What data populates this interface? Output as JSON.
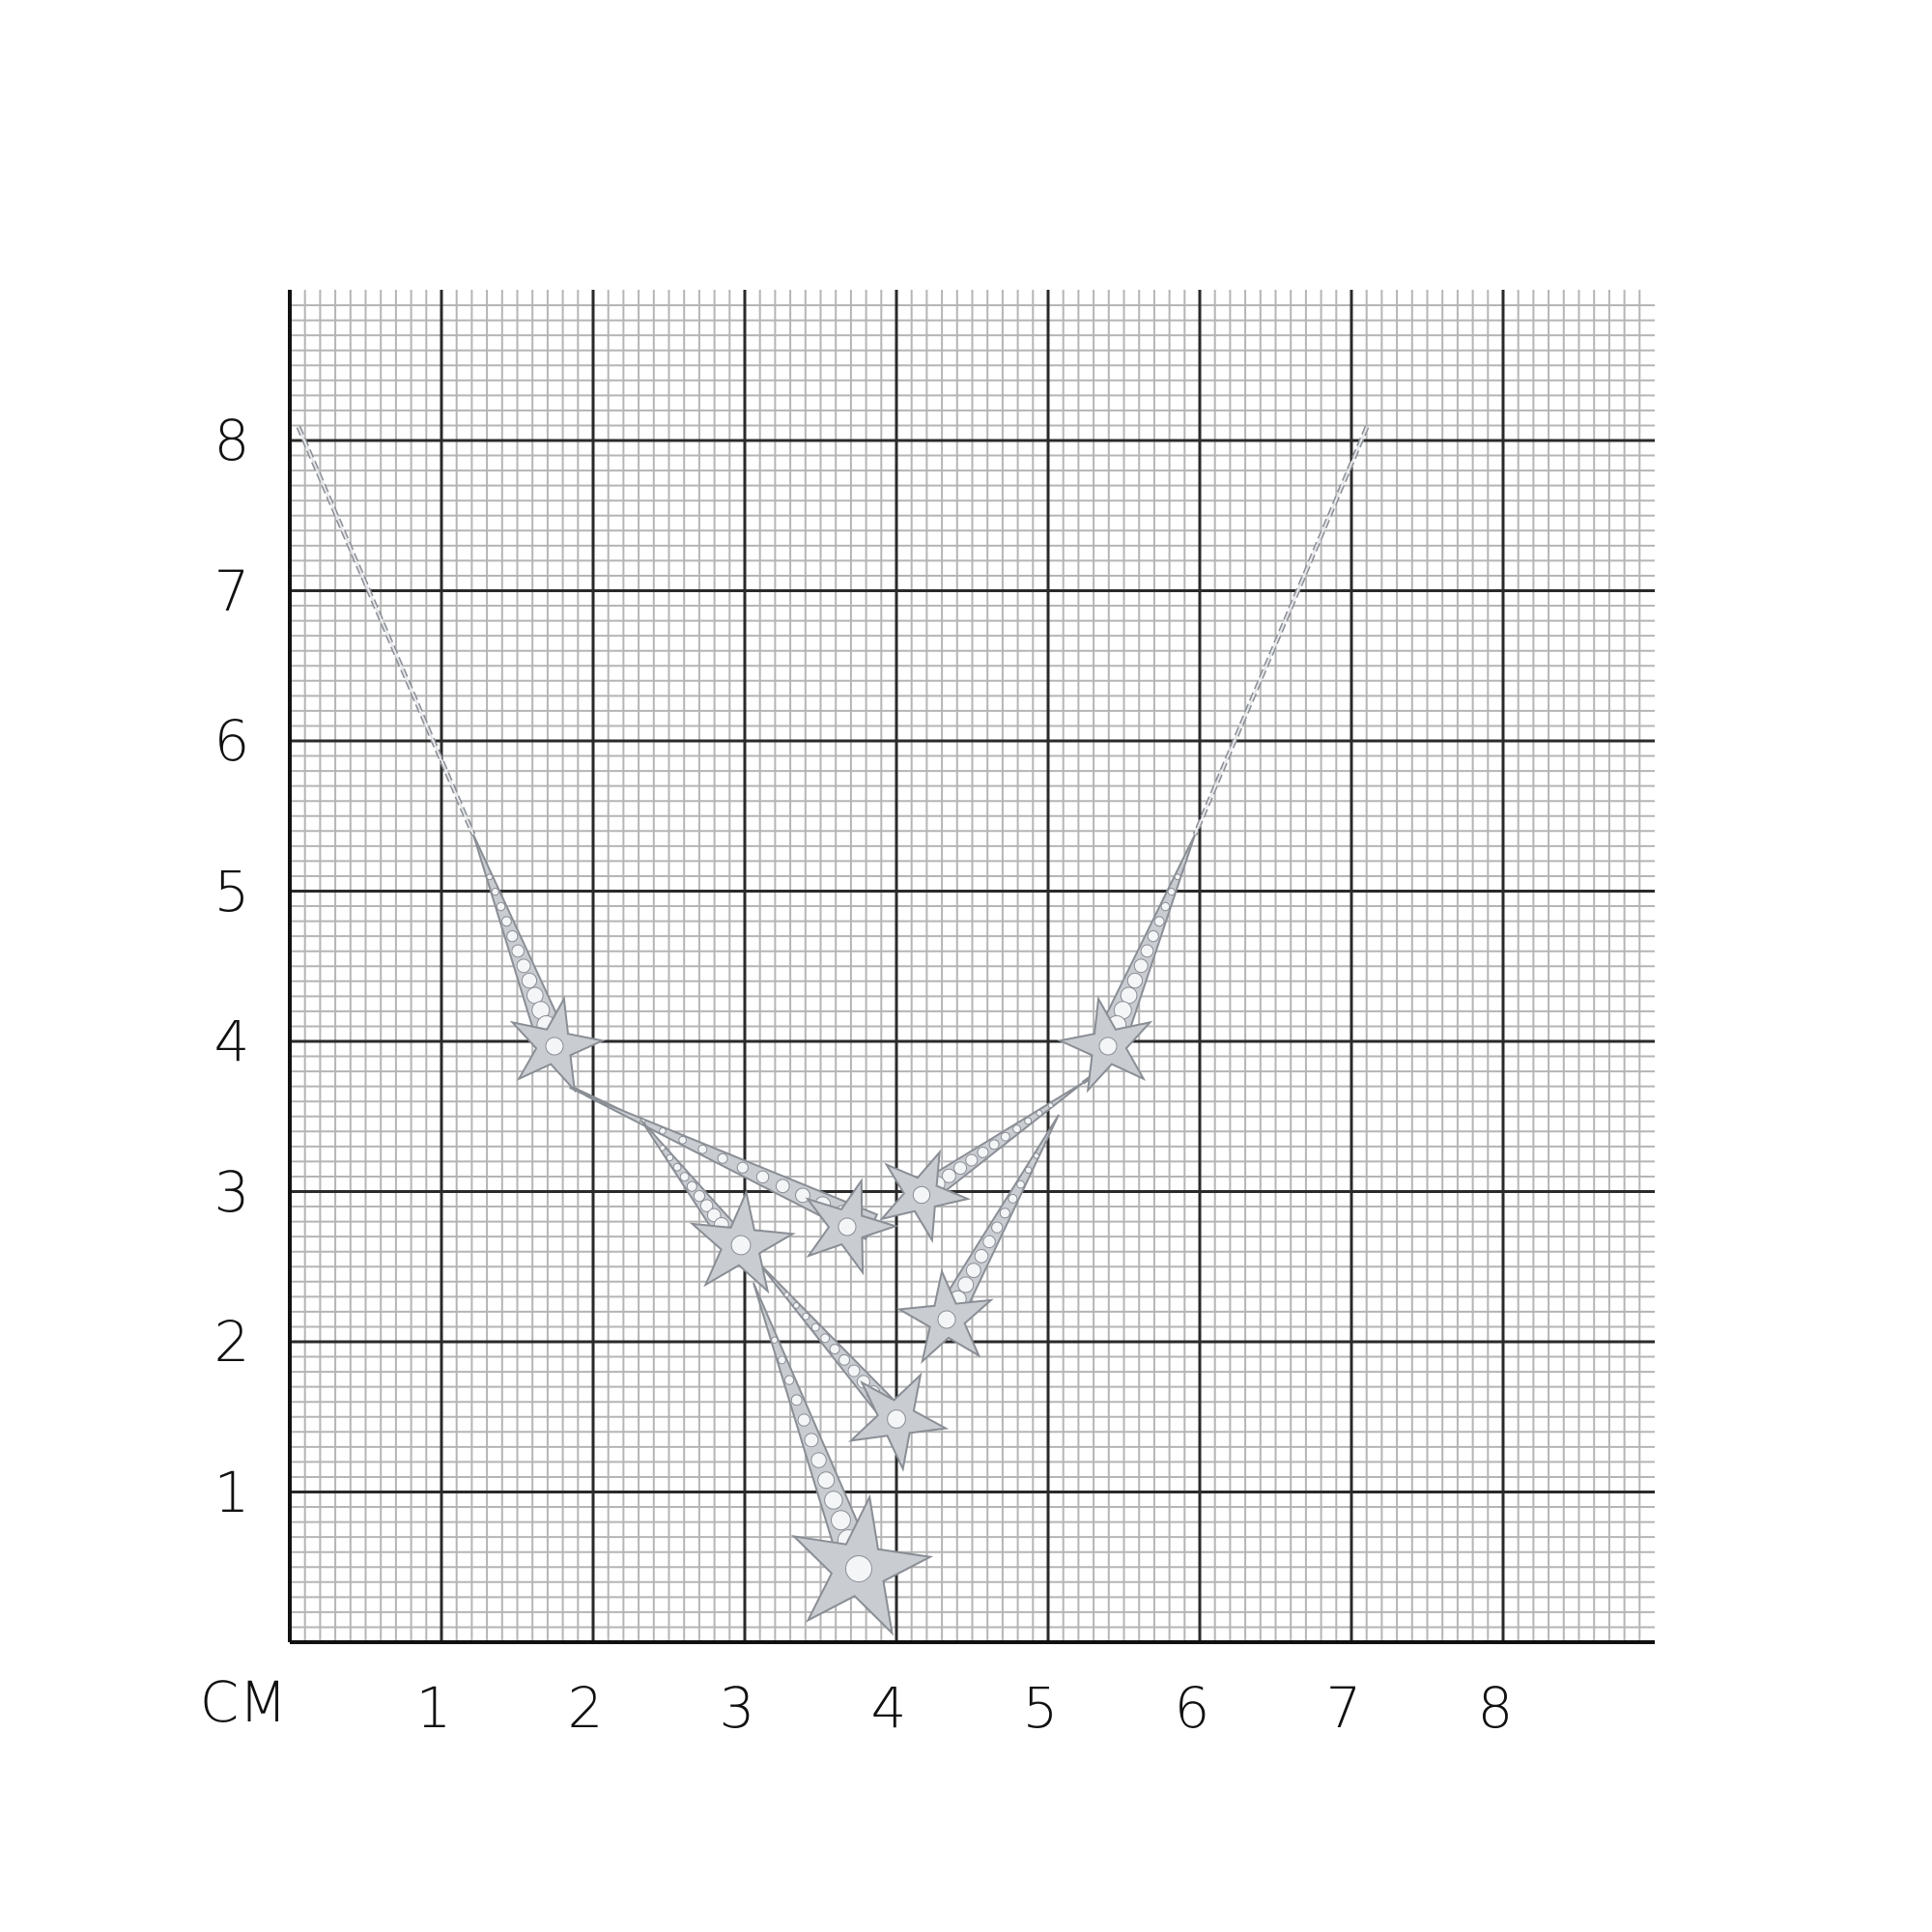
{
  "axes": {
    "unit_label": "CM",
    "x_ticks": [
      "1",
      "2",
      "3",
      "4",
      "5",
      "6",
      "7",
      "8"
    ],
    "y_ticks": [
      "1",
      "2",
      "3",
      "4",
      "5",
      "6",
      "7",
      "8"
    ]
  },
  "colors": {
    "major_grid": "#2a2a2a",
    "minor_grid": "#b5b5b5",
    "metal": "#c9ccd1",
    "metal_dark": "#8a8e95"
  },
  "subject": {
    "item": "necklace",
    "icon": "star-pendant-icon"
  }
}
